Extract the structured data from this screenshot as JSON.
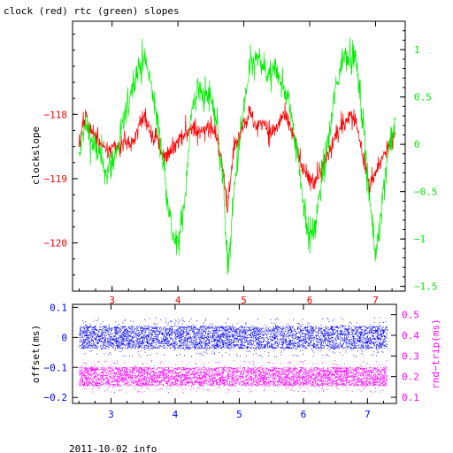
{
  "title": "clock (red) rtc (green) slopes",
  "footer": "2011-10-02 info",
  "colors": {
    "clock": "#ff0000",
    "rtc": "#00ee00",
    "offset": "#0000ff",
    "rtt": "#ff00ff",
    "axis": "#000000"
  },
  "chart_data": [
    {
      "type": "line",
      "ylabel": "clockslope",
      "y2label": "",
      "xlim": [
        2.4,
        7.45
      ],
      "ylim": [
        -120.75,
        -116.55
      ],
      "y2lim": [
        -1.55,
        1.3
      ],
      "x_ticks": [
        3,
        4,
        5,
        6,
        7
      ],
      "x_tick_labels": [
        "3",
        "4",
        "5",
        "6",
        "7"
      ],
      "y_ticks": [
        -118,
        -119,
        -120
      ],
      "y_tick_labels": [
        "−118",
        "−119",
        "−120"
      ],
      "y2_ticks": [
        1,
        0.5,
        0,
        -0.5,
        -1,
        -1.5
      ],
      "y2_tick_labels": [
        "1",
        "0.5",
        "0",
        "−0.5",
        "−1",
        "−1.5"
      ],
      "series": [
        {
          "name": "clock",
          "axis": "left",
          "x": [
            2.5,
            2.55,
            2.6,
            2.7,
            2.8,
            2.9,
            3.0,
            3.1,
            3.2,
            3.3,
            3.4,
            3.5,
            3.6,
            3.7,
            3.8,
            3.9,
            4.0,
            4.1,
            4.2,
            4.3,
            4.4,
            4.5,
            4.6,
            4.7,
            4.75,
            4.8,
            4.85,
            4.9,
            5.0,
            5.1,
            5.2,
            5.3,
            5.4,
            5.5,
            5.6,
            5.7,
            5.8,
            5.9,
            6.0,
            6.1,
            6.2,
            6.3,
            6.4,
            6.5,
            6.6,
            6.7,
            6.8,
            6.9,
            7.0,
            7.1,
            7.2,
            7.3
          ],
          "y": [
            -118.5,
            -118.2,
            -118.0,
            -118.3,
            -118.4,
            -118.6,
            -118.5,
            -118.5,
            -118.4,
            -118.5,
            -118.2,
            -118.0,
            -118.3,
            -118.4,
            -118.7,
            -118.6,
            -118.4,
            -118.3,
            -118.2,
            -118.3,
            -118.2,
            -118.2,
            -118.4,
            -118.9,
            -119.5,
            -119.0,
            -118.5,
            -118.4,
            -118.1,
            -118.0,
            -118.2,
            -118.1,
            -118.3,
            -118.2,
            -118.0,
            -118.2,
            -118.5,
            -118.9,
            -119.0,
            -119.0,
            -118.8,
            -118.6,
            -118.3,
            -118.2,
            -118.0,
            -118.1,
            -118.6,
            -119.1,
            -118.9,
            -118.7,
            -118.5,
            -118.3
          ]
        },
        {
          "name": "rtc",
          "axis": "right",
          "x": [
            2.5,
            2.55,
            2.6,
            2.7,
            2.8,
            2.9,
            3.0,
            3.1,
            3.2,
            3.3,
            3.4,
            3.5,
            3.6,
            3.7,
            3.8,
            3.9,
            4.0,
            4.1,
            4.2,
            4.3,
            4.4,
            4.5,
            4.6,
            4.7,
            4.75,
            4.8,
            4.85,
            4.9,
            5.0,
            5.1,
            5.2,
            5.3,
            5.4,
            5.5,
            5.6,
            5.7,
            5.8,
            5.9,
            6.0,
            6.1,
            6.2,
            6.3,
            6.4,
            6.5,
            6.6,
            6.7,
            6.8,
            6.9,
            7.0,
            7.1,
            7.2,
            7.3
          ],
          "y": [
            -0.2,
            0.1,
            0.2,
            0.0,
            -0.1,
            -0.3,
            -0.2,
            0.0,
            0.3,
            0.6,
            0.8,
            0.9,
            0.6,
            0.2,
            -0.3,
            -0.9,
            -1.1,
            -0.6,
            0.3,
            0.6,
            0.5,
            0.5,
            0.2,
            -0.5,
            -1.3,
            -1.0,
            -0.5,
            -0.2,
            0.4,
            0.8,
            0.9,
            0.8,
            0.7,
            0.8,
            0.6,
            0.4,
            0.0,
            -0.6,
            -1.0,
            -0.8,
            -0.3,
            0.1,
            0.6,
            0.9,
            1.0,
            0.9,
            0.3,
            -0.5,
            -1.2,
            -0.6,
            0.0,
            0.2
          ]
        }
      ]
    },
    {
      "type": "scatter",
      "ylabel": "offset(ms)",
      "y2label": "rnd−trip(ms)",
      "xlim": [
        2.4,
        7.45
      ],
      "ylim": [
        -0.22,
        0.11
      ],
      "y2lim": [
        0.07,
        0.55
      ],
      "x_ticks": [
        3,
        4,
        5,
        6,
        7
      ],
      "x_tick_labels": [
        "3",
        "4",
        "5",
        "6",
        "7"
      ],
      "y_ticks": [
        0.1,
        0,
        -0.1,
        -0.2
      ],
      "y_tick_labels": [
        "0.1",
        "0",
        "−0.1",
        "−0.2"
      ],
      "y2_ticks": [
        0.5,
        0.4,
        0.3,
        0.2,
        0.1
      ],
      "y2_tick_labels": [
        "0.5",
        "0.4",
        "0.3",
        "0.2",
        "0.1"
      ],
      "series": [
        {
          "name": "offset",
          "axis": "left",
          "x_range": [
            2.5,
            7.3
          ],
          "mean": 0.0,
          "spread": 0.05
        },
        {
          "name": "rtt",
          "axis": "right",
          "x_range": [
            2.5,
            7.3
          ],
          "mean": 0.2,
          "spread": 0.06
        }
      ]
    }
  ]
}
